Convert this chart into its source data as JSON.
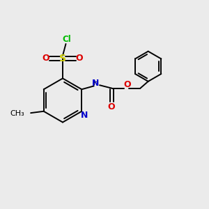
{
  "bg_color": "#ebebeb",
  "atom_colors": {
    "C": "#000000",
    "N": "#0000cc",
    "O": "#dd0000",
    "S": "#cccc00",
    "Cl": "#00bb00",
    "H": "#000000"
  },
  "bond_color": "#000000",
  "bond_width": 1.4,
  "fig_width": 3.0,
  "fig_height": 3.0,
  "dpi": 100
}
